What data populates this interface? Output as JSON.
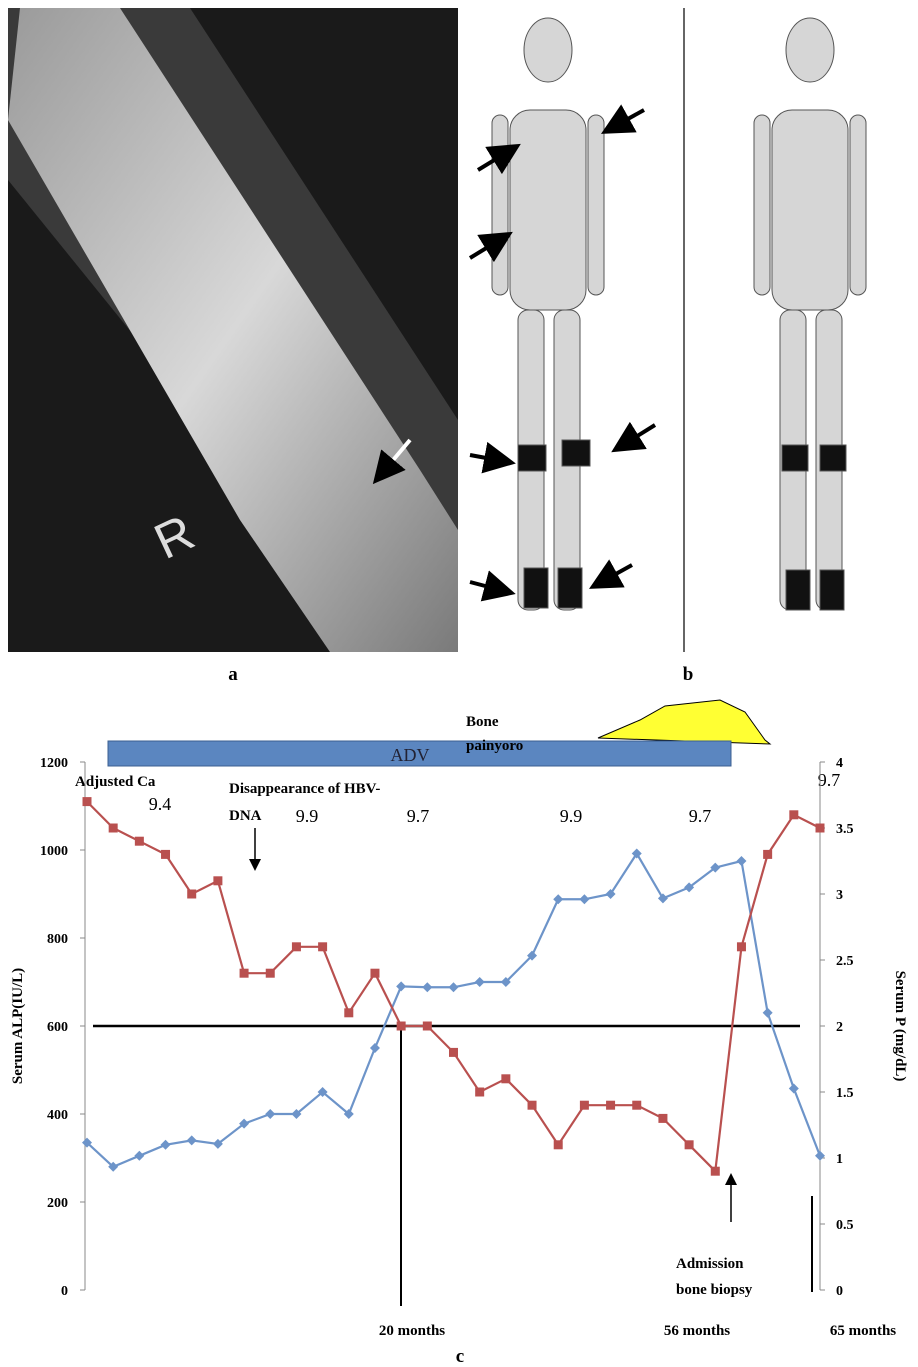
{
  "panel_labels": [
    "a",
    "b",
    "c"
  ],
  "xray_marker": "R",
  "chart_data": {
    "type": "line",
    "categories": [
      null,
      null,
      null,
      null,
      null,
      null,
      null,
      null,
      null,
      null,
      null,
      null,
      null,
      null,
      null,
      null,
      null,
      null,
      null,
      null,
      null,
      null,
      null,
      null,
      null,
      null,
      null,
      null,
      null
    ],
    "series": [
      {
        "color": "#6d94c9",
        "marker": "diamond",
        "values": [
          335,
          280,
          305,
          330,
          340,
          332,
          378,
          400,
          400,
          450,
          400,
          550,
          690,
          688,
          688,
          700,
          700,
          760,
          888,
          888,
          900,
          992,
          890,
          915,
          960,
          975,
          630,
          458,
          305
        ]
      },
      {
        "color": "#b9504f",
        "marker": "square",
        "axis": "y2",
        "values": [
          3.7,
          3.5,
          3.4,
          3.3,
          3.0,
          3.1,
          2.4,
          2.4,
          2.6,
          2.6,
          2.1,
          2.4,
          2.0,
          2.0,
          1.8,
          1.5,
          1.6,
          1.4,
          1.1,
          1.4,
          1.4,
          1.4,
          1.3,
          1.1,
          0.9,
          2.6,
          3.3,
          3.6,
          3.5
        ]
      }
    ],
    "ylim": [
      0,
      1200
    ],
    "yticks": [
      0,
      200,
      400,
      600,
      800,
      1000,
      1200
    ],
    "y2lim": [
      0,
      4
    ],
    "y2ticks": [
      0,
      0.5,
      1,
      1.5,
      2,
      2.5,
      3,
      3.5,
      4
    ],
    "ylabel": "Serum ALP(IU/L)",
    "y2label": "Serum P (mg/dL)",
    "reference_line": {
      "value": 2,
      "axis": "y2"
    },
    "adjusted_ca": {
      "label": "Adjusted Ca",
      "values": [
        9.4,
        9.9,
        9.7,
        9.9,
        9.7,
        9.7
      ]
    },
    "hbv_note": [
      "Disappearance of HBV-",
      "DNA"
    ],
    "adv_label": "ADV",
    "bone_pain": [
      "Bone",
      "painyoro"
    ],
    "admission": [
      "Admission",
      "bone biopsy"
    ],
    "time_labels": [
      "20 months",
      "56 months",
      "65 months"
    ]
  }
}
